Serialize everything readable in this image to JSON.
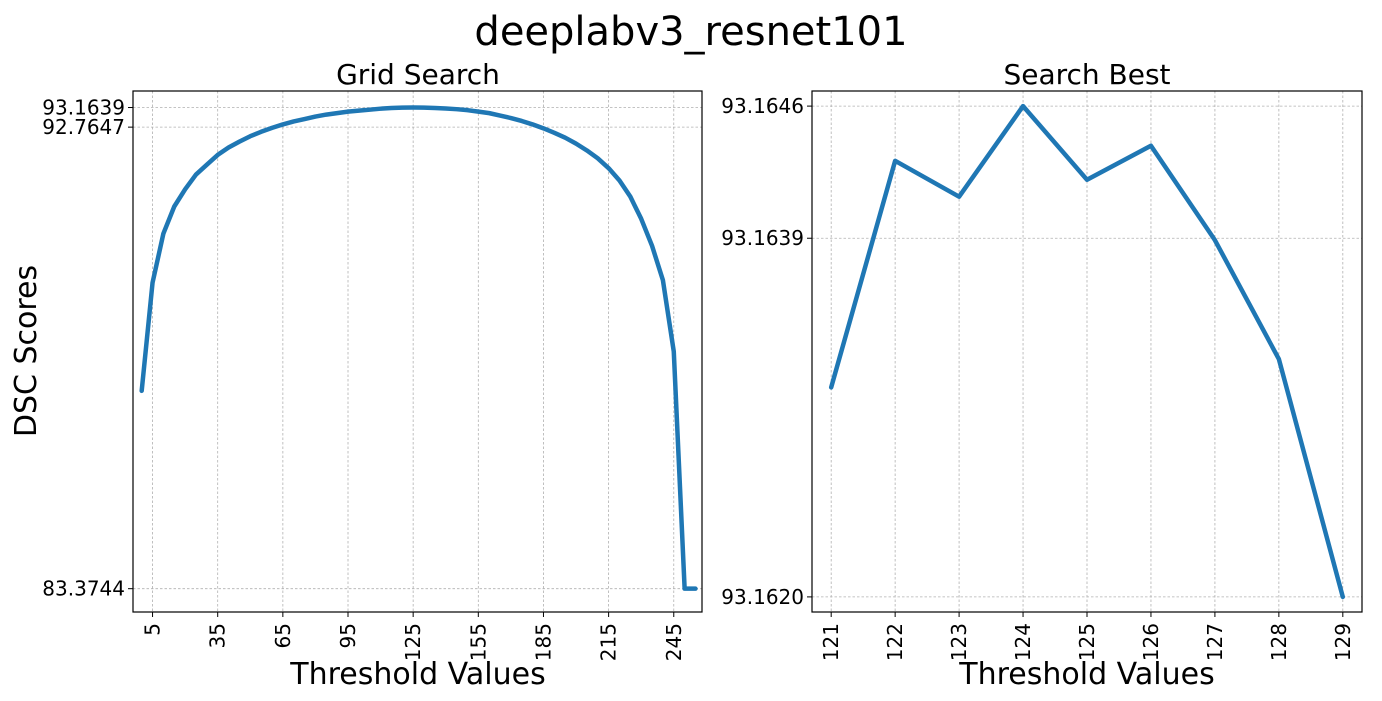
{
  "suptitle": "deeplabv3_resnet101",
  "colors": {
    "line": "#1f77b4",
    "grid": "#b0b0b0"
  },
  "chart_data": [
    {
      "type": "line",
      "title": "Grid Search",
      "xlabel": "Threshold Values",
      "ylabel": "DSC Scores",
      "grid": true,
      "xlim": [
        -4,
        258
      ],
      "ylim": [
        82.9,
        93.5
      ],
      "xticks": [
        5,
        35,
        65,
        95,
        125,
        155,
        185,
        215,
        245
      ],
      "yticks": [
        83.3744,
        92.7647,
        93.1639
      ],
      "ytick_labels": [
        "83.3744",
        "92.7647",
        "93.1639"
      ],
      "x": [
        0,
        5,
        10,
        15,
        20,
        25,
        30,
        35,
        40,
        45,
        50,
        55,
        60,
        65,
        70,
        75,
        80,
        85,
        90,
        95,
        100,
        105,
        110,
        115,
        120,
        125,
        130,
        135,
        140,
        145,
        150,
        155,
        160,
        165,
        170,
        175,
        180,
        185,
        190,
        195,
        200,
        205,
        210,
        215,
        220,
        225,
        230,
        235,
        240,
        245,
        250,
        255
      ],
      "y": [
        87.4,
        89.6,
        90.6,
        91.15,
        91.5,
        91.8,
        92.0,
        92.2,
        92.35,
        92.47,
        92.58,
        92.67,
        92.75,
        92.82,
        92.88,
        92.93,
        92.98,
        93.02,
        93.05,
        93.08,
        93.1,
        93.12,
        93.14,
        93.155,
        93.162,
        93.1639,
        93.162,
        93.155,
        93.145,
        93.13,
        93.11,
        93.08,
        93.05,
        93.0,
        92.95,
        92.89,
        92.82,
        92.74,
        92.65,
        92.55,
        92.43,
        92.29,
        92.13,
        91.93,
        91.68,
        91.35,
        90.9,
        90.35,
        89.65,
        88.2,
        83.3744,
        83.3744
      ]
    },
    {
      "type": "line",
      "title": "Search Best",
      "xlabel": "Threshold Values",
      "grid": true,
      "xlim": [
        120.7,
        129.3
      ],
      "ylim": [
        93.16192,
        93.16468
      ],
      "xticks": [
        121,
        122,
        123,
        124,
        125,
        126,
        127,
        128,
        129
      ],
      "yticks": [
        93.162,
        93.1639,
        93.1646
      ],
      "ytick_labels": [
        "93.1620",
        "93.1639",
        "93.1646"
      ],
      "x": [
        121,
        122,
        123,
        124,
        125,
        126,
        127,
        128,
        129
      ],
      "y": [
        93.16311,
        93.16431,
        93.16412,
        93.1646,
        93.16421,
        93.16439,
        93.16389,
        93.16326,
        93.162
      ]
    }
  ]
}
